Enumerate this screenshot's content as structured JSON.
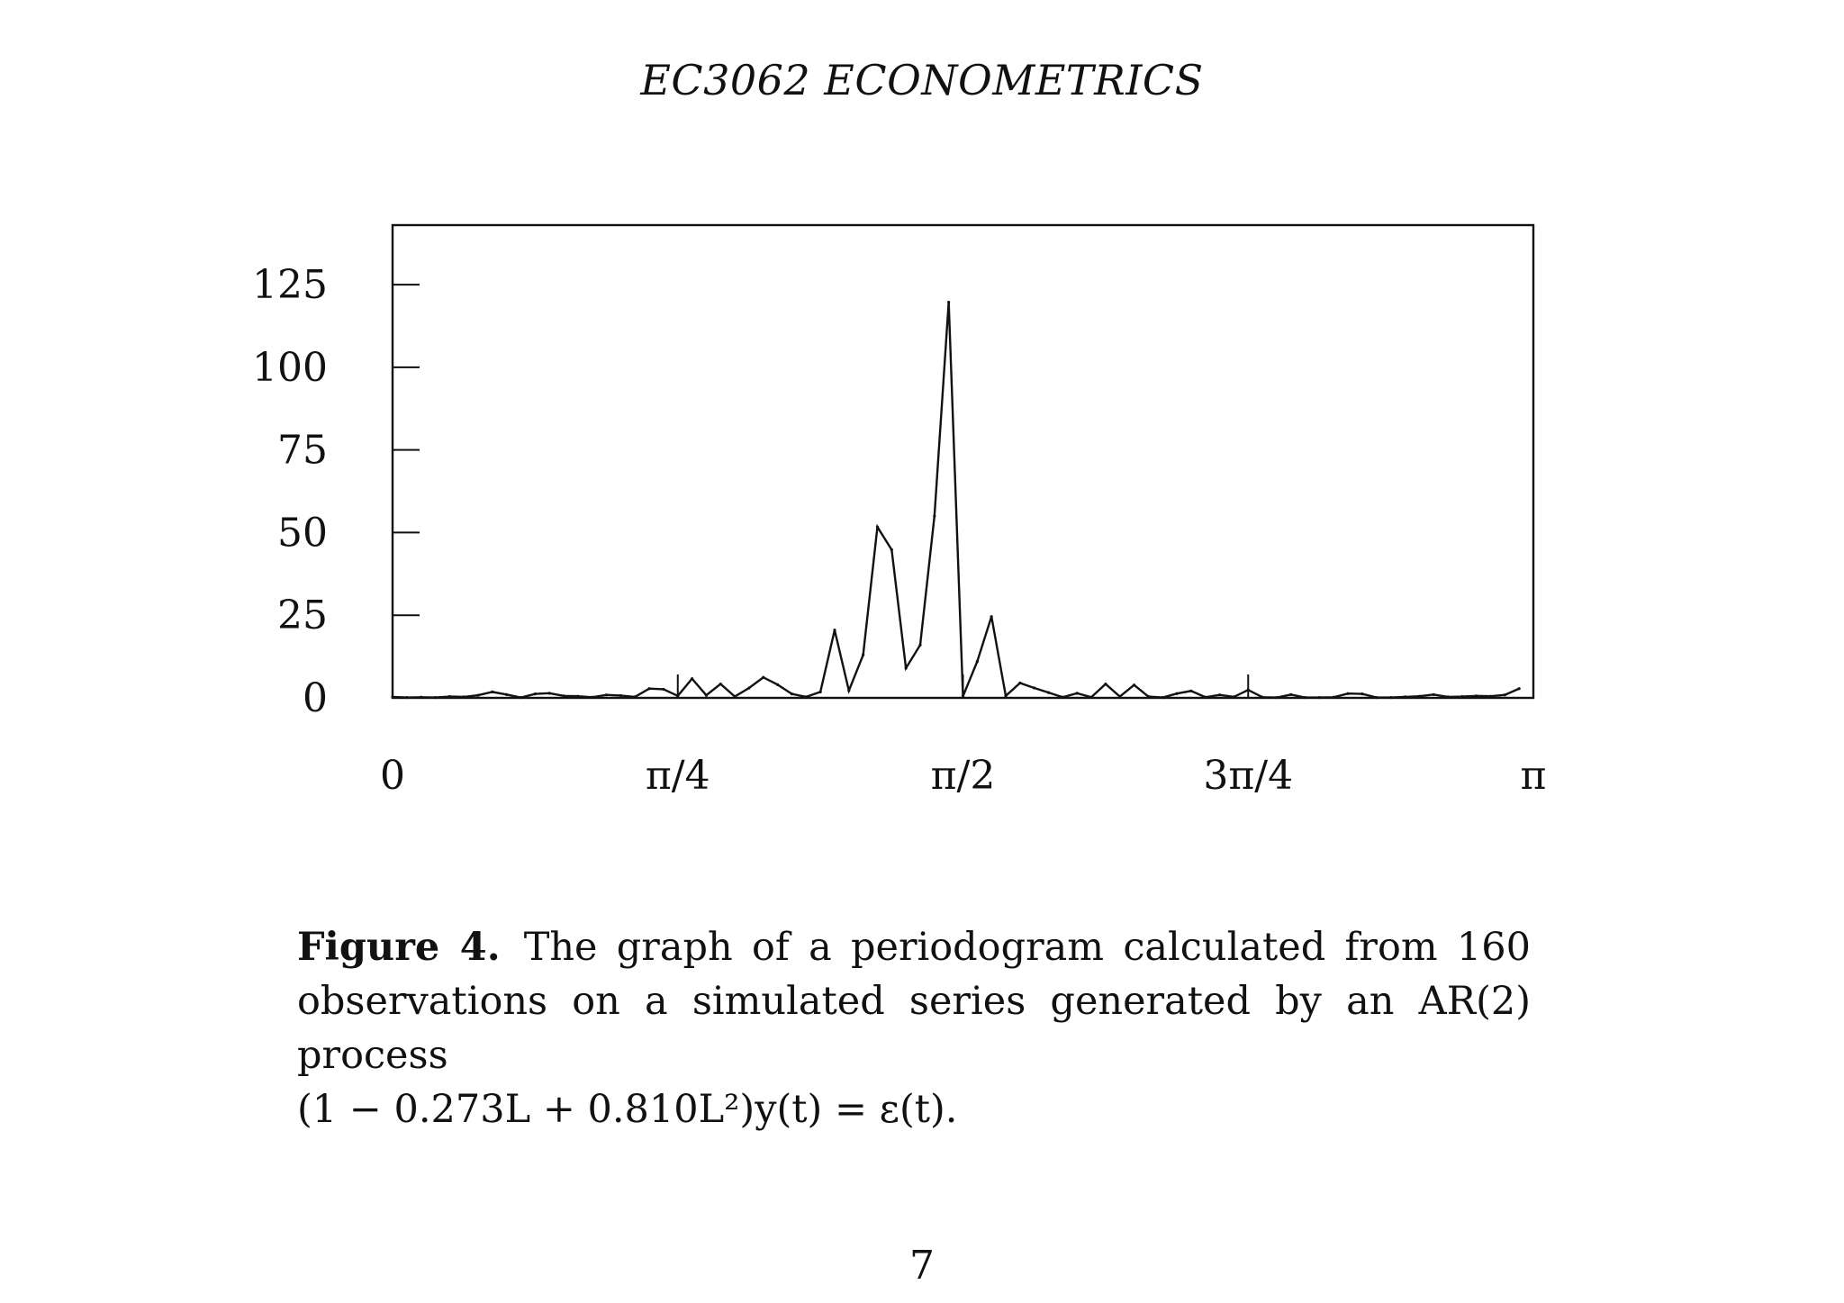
{
  "header": {
    "running_title": "EC3062 ECONOMETRICS"
  },
  "chart_data": {
    "type": "line",
    "title": "",
    "xlabel": "",
    "ylabel": "",
    "xlim": [
      0,
      3.14159
    ],
    "ylim": [
      0,
      143
    ],
    "grid": false,
    "legend": "none",
    "y_ticks": [
      {
        "value": 0,
        "label": "0"
      },
      {
        "value": 25,
        "label": "25"
      },
      {
        "value": 50,
        "label": "50"
      },
      {
        "value": 75,
        "label": "75"
      },
      {
        "value": 100,
        "label": "100"
      },
      {
        "value": 125,
        "label": "125"
      }
    ],
    "x_ticks": [
      {
        "value": 0,
        "label": "0"
      },
      {
        "value": 0.7854,
        "label": "π/4"
      },
      {
        "value": 1.5708,
        "label": "π/2"
      },
      {
        "value": 2.3562,
        "label": "3π/4"
      },
      {
        "value": 3.14159,
        "label": "π"
      }
    ],
    "series": [
      {
        "x_step": 0.03927,
        "values": [
          0.3,
          0.1,
          0.2,
          0.1,
          0.4,
          0.3,
          0.8,
          1.8,
          1.0,
          0.1,
          1.2,
          1.4,
          0.6,
          0.5,
          0.2,
          0.9,
          0.7,
          0.3,
          2.8,
          2.6,
          0.6,
          5.8,
          0.8,
          4.2,
          0.4,
          3.0,
          6.2,
          4.0,
          1.2,
          0.3,
          1.8,
          20.5,
          2.2,
          13.0,
          51.7,
          44.8,
          9.0,
          16.0,
          55.0,
          119.7,
          0.5,
          11.0,
          24.6,
          0.6,
          4.5,
          3.0,
          1.6,
          0.2,
          1.4,
          0.2,
          4.2,
          0.4,
          3.9,
          0.4,
          0.1,
          1.3,
          2.1,
          0.2,
          0.9,
          0.3,
          2.4,
          0.2,
          0.1,
          1.0,
          0.1,
          0.1,
          0.2,
          1.3,
          1.2,
          0.1,
          0.1,
          0.3,
          0.5,
          1.0,
          0.3,
          0.4,
          0.6,
          0.5,
          0.9,
          2.8
        ]
      }
    ]
  },
  "caption": {
    "label": "Figure 4.",
    "text": "The graph of a periodogram calculated from 160 observations on a simulated series generated by an AR(2) process",
    "formula": "(1 − 0.273L + 0.810L²)y(t) = ε(t)."
  },
  "page_number": "7"
}
